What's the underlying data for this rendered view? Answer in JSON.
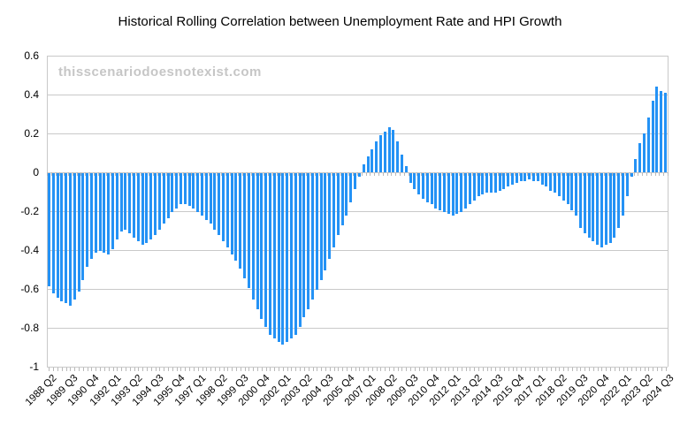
{
  "chart_data": {
    "type": "bar",
    "title": "Historical Rolling Correlation between Unemployment Rate and HPI Growth",
    "watermark": "thisscenariodoesnotexist.com",
    "x_start": "1988 Q2",
    "x_frequency": "quarterly",
    "x_tick_every": 5,
    "x_tick_labels": [
      "1988 Q2",
      "1989 Q3",
      "1990 Q4",
      "1992 Q1",
      "1993 Q2",
      "1994 Q3",
      "1995 Q4",
      "1997 Q1",
      "1998 Q2",
      "1999 Q3",
      "2000 Q4",
      "2002 Q1",
      "2003 Q2",
      "2004 Q3",
      "2005 Q4",
      "2007 Q1",
      "2008 Q2",
      "2009 Q3",
      "2010 Q4",
      "2012 Q1",
      "2013 Q2",
      "2014 Q3",
      "2015 Q4",
      "2017 Q1",
      "2018 Q2",
      "2019 Q3",
      "2020 Q4",
      "2022 Q1",
      "2023 Q2",
      "2024 Q3"
    ],
    "y_ticks": [
      0.6,
      0.4,
      0.2,
      0,
      -0.2,
      -0.4,
      -0.6,
      -0.8,
      -1
    ],
    "y_tick_labels": [
      "0.6",
      "0.4",
      "0.2",
      "0",
      "-0.2",
      "-0.4",
      "-0.6",
      "-0.8",
      "-1"
    ],
    "ylim": [
      -1,
      0.6
    ],
    "grid": true,
    "legend": "none",
    "series": [
      {
        "name": "rolling_correlation",
        "values": [
          -0.58,
          -0.62,
          -0.64,
          -0.66,
          -0.67,
          -0.68,
          -0.65,
          -0.61,
          -0.55,
          -0.48,
          -0.44,
          -0.41,
          -0.4,
          -0.41,
          -0.42,
          -0.39,
          -0.34,
          -0.3,
          -0.29,
          -0.31,
          -0.33,
          -0.35,
          -0.37,
          -0.36,
          -0.34,
          -0.32,
          -0.29,
          -0.26,
          -0.23,
          -0.2,
          -0.18,
          -0.16,
          -0.16,
          -0.17,
          -0.18,
          -0.2,
          -0.22,
          -0.24,
          -0.26,
          -0.29,
          -0.32,
          -0.35,
          -0.38,
          -0.42,
          -0.45,
          -0.49,
          -0.54,
          -0.59,
          -0.65,
          -0.7,
          -0.75,
          -0.79,
          -0.83,
          -0.85,
          -0.87,
          -0.88,
          -0.87,
          -0.85,
          -0.83,
          -0.79,
          -0.74,
          -0.7,
          -0.65,
          -0.6,
          -0.55,
          -0.5,
          -0.44,
          -0.38,
          -0.32,
          -0.27,
          -0.22,
          -0.15,
          -0.08,
          -0.02,
          0.04,
          0.08,
          0.12,
          0.16,
          0.19,
          0.21,
          0.23,
          0.22,
          0.16,
          0.09,
          0.03,
          -0.05,
          -0.08,
          -0.11,
          -0.13,
          -0.15,
          -0.16,
          -0.18,
          -0.19,
          -0.2,
          -0.21,
          -0.22,
          -0.21,
          -0.2,
          -0.18,
          -0.16,
          -0.14,
          -0.12,
          -0.11,
          -0.1,
          -0.1,
          -0.1,
          -0.09,
          -0.08,
          -0.07,
          -0.06,
          -0.05,
          -0.04,
          -0.04,
          -0.03,
          -0.04,
          -0.04,
          -0.06,
          -0.07,
          -0.09,
          -0.1,
          -0.12,
          -0.14,
          -0.16,
          -0.19,
          -0.22,
          -0.28,
          -0.31,
          -0.33,
          -0.35,
          -0.37,
          -0.38,
          -0.37,
          -0.36,
          -0.33,
          -0.28,
          -0.22,
          -0.12,
          -0.02,
          0.07,
          0.15,
          0.2,
          0.28,
          0.37,
          0.44,
          0.42,
          0.41
        ]
      }
    ],
    "colors": {
      "bar": "#2492f5",
      "grid": "#c9c9c9",
      "tick": "#b9b9b9",
      "text": "#000000",
      "watermark": "#c6c6c6",
      "background": "#ffffff"
    }
  }
}
